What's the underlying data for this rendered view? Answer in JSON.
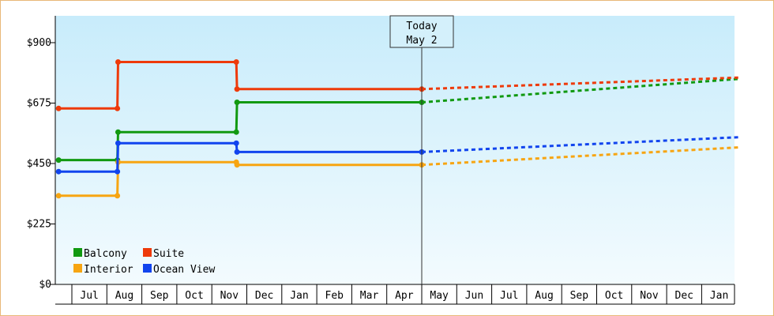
{
  "chart_data": {
    "type": "line",
    "title": "",
    "xlabel": "",
    "ylabel": "",
    "ylim": [
      0,
      1000
    ],
    "yticks": [
      {
        "value": 0,
        "label": "$0"
      },
      {
        "value": 225,
        "label": "$225"
      },
      {
        "value": 450,
        "label": "$450"
      },
      {
        "value": 675,
        "label": "$675"
      },
      {
        "value": 900,
        "label": "$900"
      }
    ],
    "x_month_labels": [
      "Jul",
      "Aug",
      "Sep",
      "Oct",
      "Nov",
      "Dec",
      "Jan",
      "Feb",
      "Mar",
      "Apr",
      "May",
      "Jun",
      "Jul",
      "Aug",
      "Sep",
      "Oct",
      "Nov",
      "Dec",
      "Jan"
    ],
    "xlim_months": [
      -0.38,
      19.05
    ],
    "grid": false,
    "legend_position": "bottom-left",
    "background_colors": {
      "top": "#c8ecfb",
      "bottom": "#f3fbfe"
    },
    "today_marker": {
      "line1": "Today",
      "line2": "May 2",
      "x": 10.0
    },
    "series": [
      {
        "name": "Balcony",
        "color": "#119911",
        "actual": [
          [
            -0.38,
            463
          ],
          [
            1.3,
            463
          ],
          [
            1.32,
            567
          ],
          [
            4.7,
            567
          ],
          [
            4.72,
            678
          ],
          [
            10.0,
            678
          ]
        ],
        "forecast": [
          [
            10.0,
            678
          ],
          [
            19.05,
            765
          ]
        ]
      },
      {
        "name": "Suite",
        "color": "#ee3a0a",
        "actual": [
          [
            -0.38,
            655
          ],
          [
            1.3,
            655
          ],
          [
            1.32,
            828
          ],
          [
            4.7,
            828
          ],
          [
            4.72,
            727
          ],
          [
            10.0,
            727
          ]
        ],
        "forecast": [
          [
            10.0,
            727
          ],
          [
            19.05,
            770
          ]
        ]
      },
      {
        "name": "Interior",
        "color": "#f7a512",
        "actual": [
          [
            -0.38,
            330
          ],
          [
            1.3,
            330
          ],
          [
            1.32,
            455
          ],
          [
            4.7,
            455
          ],
          [
            4.72,
            445
          ],
          [
            10.0,
            445
          ]
        ],
        "forecast": [
          [
            10.0,
            445
          ],
          [
            19.05,
            510
          ]
        ]
      },
      {
        "name": "Ocean View",
        "color": "#1144ee",
        "actual": [
          [
            -0.38,
            420
          ],
          [
            1.3,
            420
          ],
          [
            1.32,
            526
          ],
          [
            4.7,
            526
          ],
          [
            4.72,
            493
          ],
          [
            10.0,
            493
          ]
        ],
        "forecast": [
          [
            10.0,
            493
          ],
          [
            19.05,
            548
          ]
        ]
      }
    ],
    "legend_rows": [
      [
        "Balcony",
        "Suite"
      ],
      [
        "Interior",
        "Ocean View"
      ]
    ]
  }
}
